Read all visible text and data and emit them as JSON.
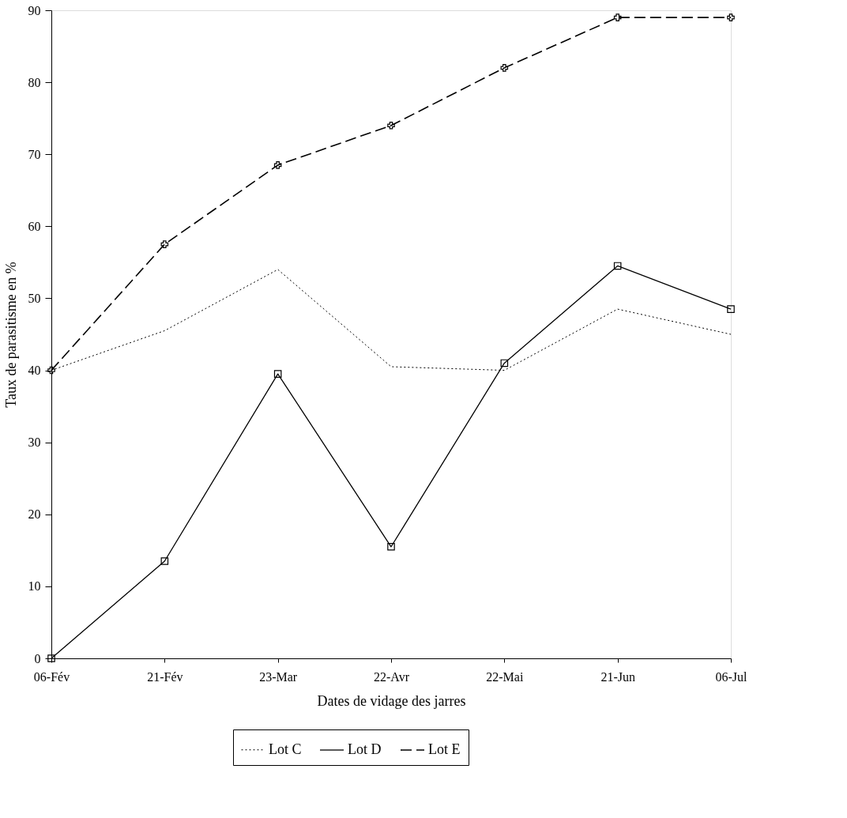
{
  "chart_data": {
    "type": "line",
    "xlabel": "Dates de vidage des jarres",
    "ylabel": "Taux de parasitisme en  %",
    "categories": [
      "06-Fév",
      "21-Fév",
      "23-Mar",
      "22-Avr",
      "22-Mai",
      "21-Jun",
      "06-Jul"
    ],
    "series": [
      {
        "name": "Lot C",
        "color": "#000000",
        "line_style": "dotted",
        "marker": "none",
        "values": [
          40,
          45.5,
          54,
          40.5,
          40,
          48.5,
          45
        ]
      },
      {
        "name": "Lot D",
        "color": "#000000",
        "line_style": "solid",
        "marker": "square",
        "values": [
          0,
          13.5,
          39.5,
          15.5,
          41,
          54.5,
          48.5
        ]
      },
      {
        "name": "Lot E",
        "color": "#000000",
        "line_style": "dashed",
        "marker": "cross",
        "values": [
          40,
          57.5,
          68.5,
          74,
          82,
          89,
          89
        ]
      }
    ],
    "ylim": [
      0,
      90
    ],
    "yticks": [
      0,
      10,
      20,
      30,
      40,
      50,
      60,
      70,
      80,
      90
    ],
    "grid": false,
    "legend": "bottom"
  }
}
